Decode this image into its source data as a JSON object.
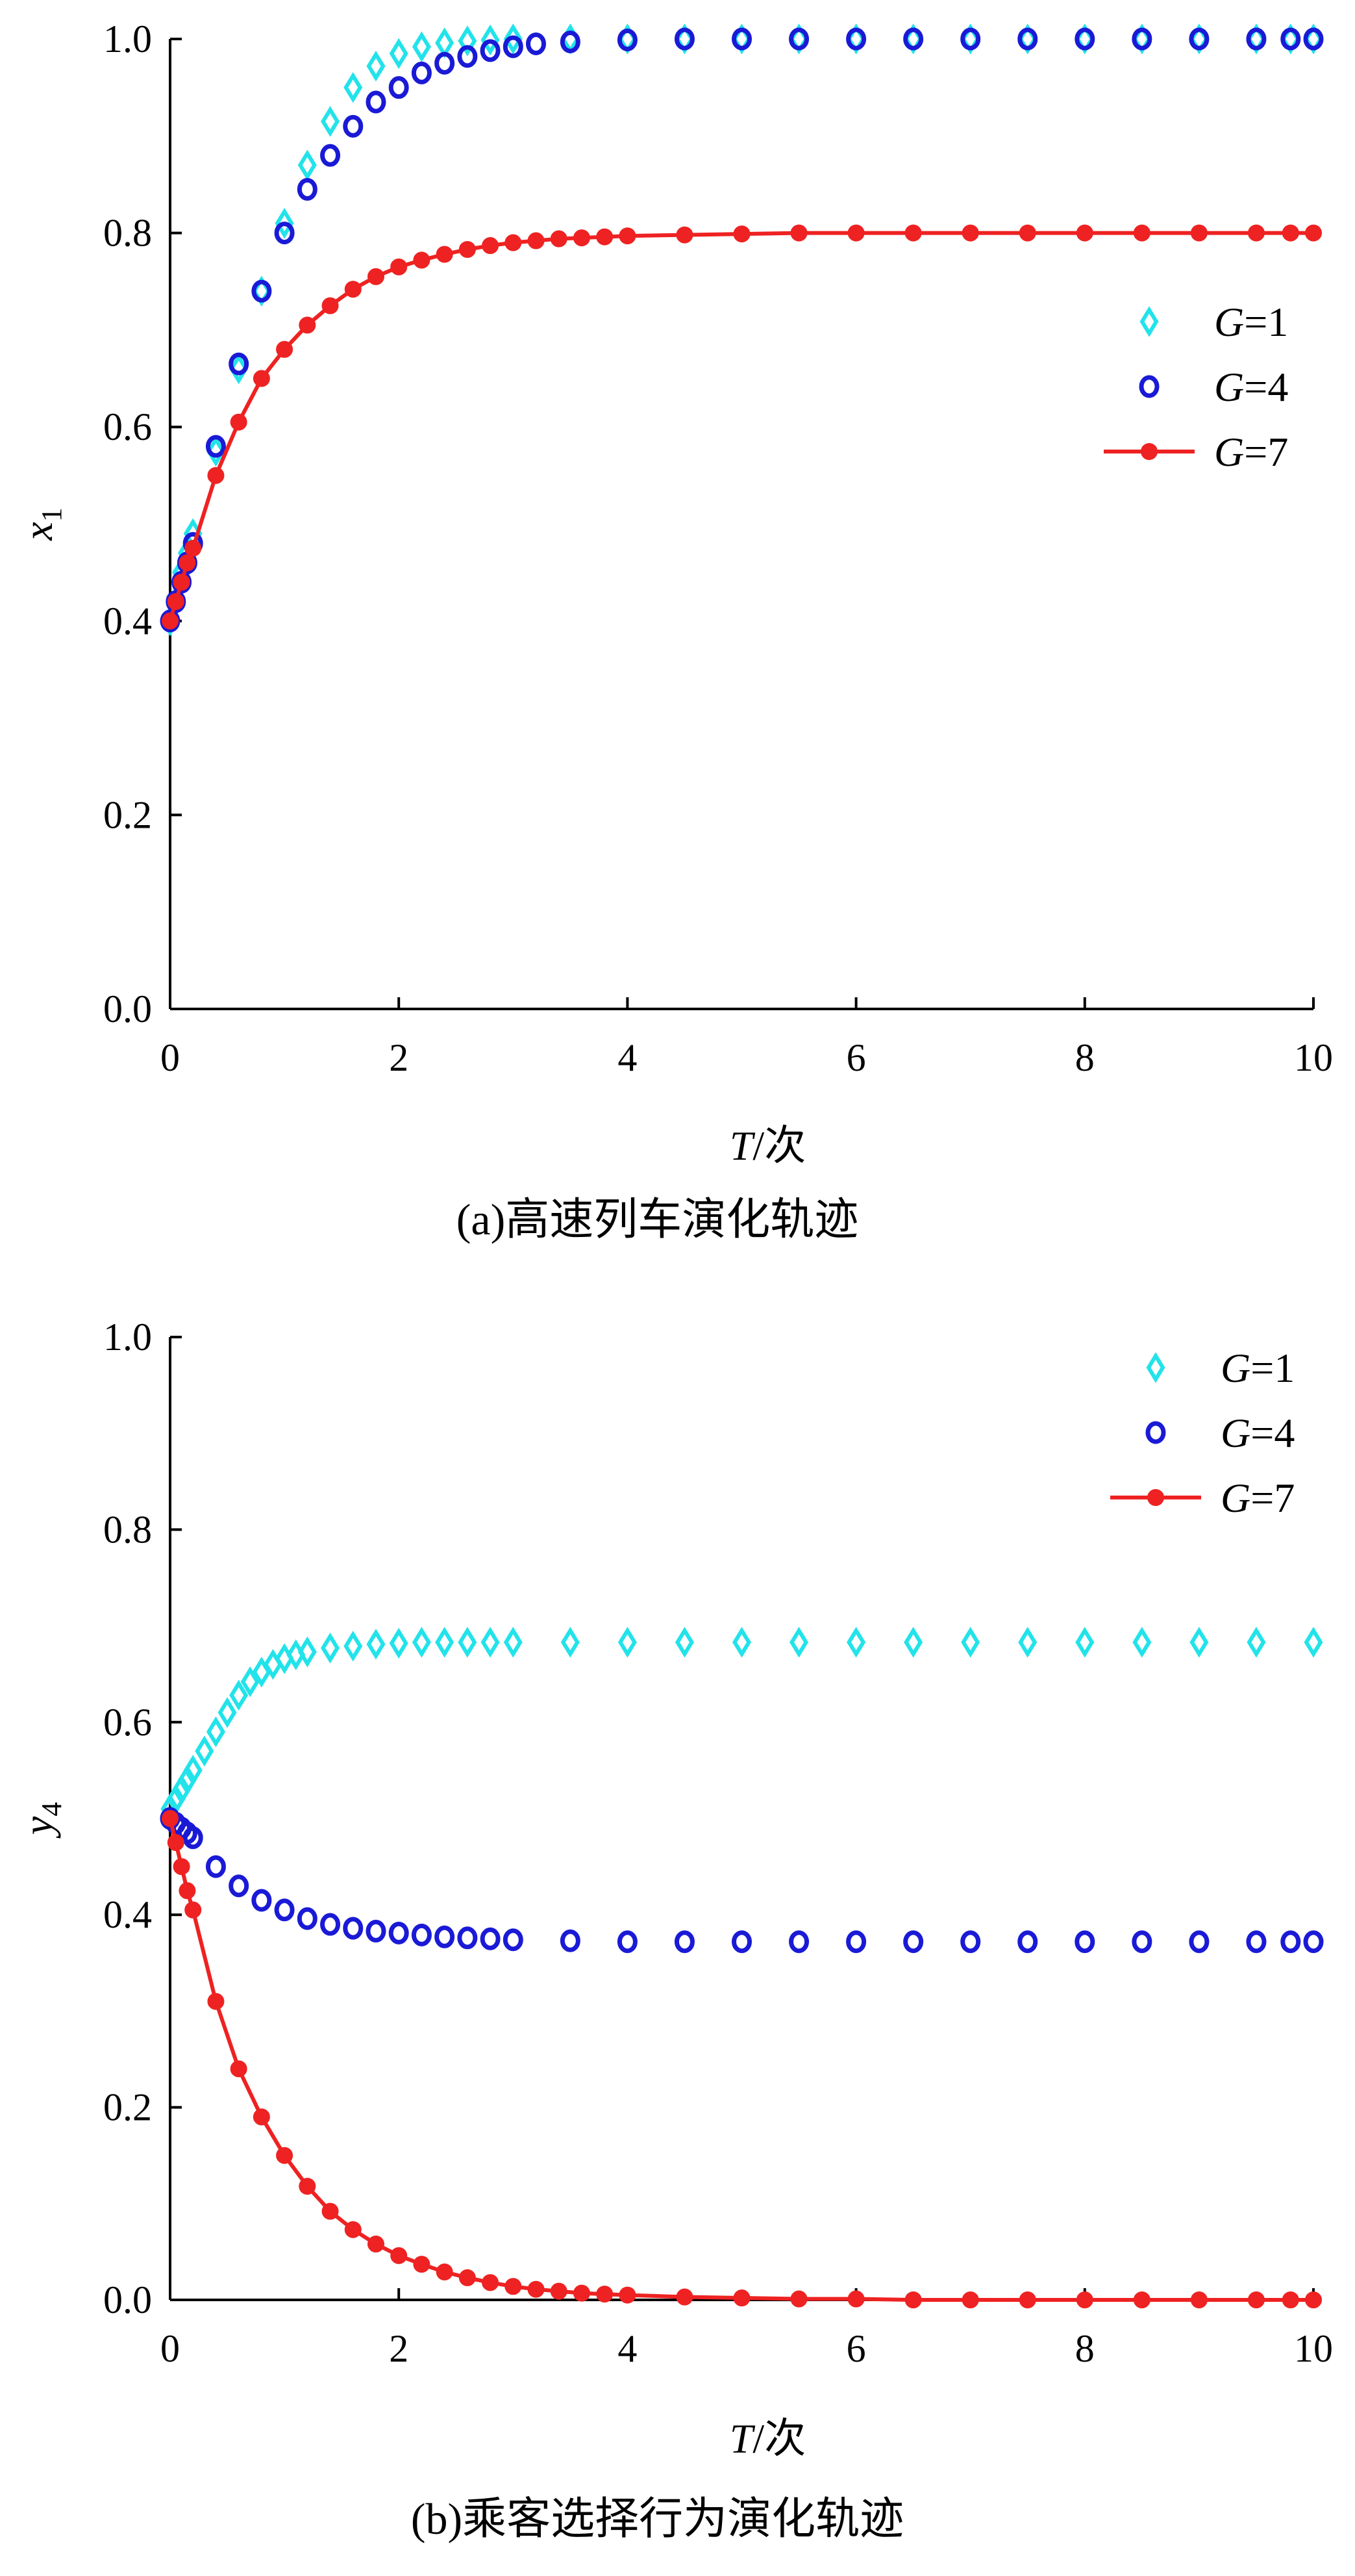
{
  "chart_data": [
    {
      "type": "scatter",
      "caption": "(a)高速列车演化轨迹",
      "xlabel_var": "T",
      "xlabel_unit": "/次",
      "ylabel_var": "x",
      "ylabel_sub": "1",
      "xlim": [
        0,
        10
      ],
      "ylim": [
        0,
        1
      ],
      "xticks": [
        "0",
        "2",
        "4",
        "6",
        "8",
        "10"
      ],
      "yticks": [
        "0.0",
        "0.2",
        "0.4",
        "0.6",
        "0.8",
        "1.0"
      ],
      "legend_position": "right",
      "series": [
        {
          "name_var": "G",
          "name_val": "=1",
          "color": "#22e3ea",
          "marker": "diamond",
          "x": [
            0.0,
            0.05,
            0.1,
            0.15,
            0.2,
            0.4,
            0.6,
            0.8,
            1.0,
            1.2,
            1.4,
            1.6,
            1.8,
            2.0,
            2.2,
            2.4,
            2.6,
            2.8,
            3.0,
            3.5,
            4.0,
            4.5,
            5.0,
            5.5,
            6.0,
            6.5,
            7.0,
            7.5,
            8.0,
            8.5,
            9.0,
            9.5,
            9.8,
            10.0
          ],
          "y": [
            0.4,
            0.42,
            0.45,
            0.47,
            0.49,
            0.575,
            0.66,
            0.74,
            0.81,
            0.87,
            0.915,
            0.95,
            0.972,
            0.985,
            0.992,
            0.996,
            0.998,
            0.999,
            1.0,
            1.0,
            1.0,
            1.0,
            1.0,
            1.0,
            1.0,
            1.0,
            1.0,
            1.0,
            1.0,
            1.0,
            1.0,
            1.0,
            1.0,
            1.0
          ]
        },
        {
          "name_var": "G",
          "name_val": "=4",
          "color": "#1a1ad6",
          "marker": "circle",
          "x": [
            0.0,
            0.05,
            0.1,
            0.15,
            0.2,
            0.4,
            0.6,
            0.8,
            1.0,
            1.2,
            1.4,
            1.6,
            1.8,
            2.0,
            2.2,
            2.4,
            2.6,
            2.8,
            3.0,
            3.2,
            3.5,
            4.0,
            4.5,
            5.0,
            5.5,
            6.0,
            6.5,
            7.0,
            7.5,
            8.0,
            8.5,
            9.0,
            9.5,
            9.8,
            10.0
          ],
          "y": [
            0.4,
            0.42,
            0.44,
            0.46,
            0.48,
            0.58,
            0.665,
            0.74,
            0.8,
            0.845,
            0.88,
            0.91,
            0.935,
            0.95,
            0.965,
            0.975,
            0.982,
            0.988,
            0.992,
            0.995,
            0.997,
            0.999,
            1.0,
            1.0,
            1.0,
            1.0,
            1.0,
            1.0,
            1.0,
            1.0,
            1.0,
            1.0,
            1.0,
            1.0,
            1.0
          ]
        },
        {
          "name_var": "G",
          "name_val": "=7",
          "color": "#ee2222",
          "marker": "line-dot",
          "x": [
            0.0,
            0.05,
            0.1,
            0.15,
            0.2,
            0.4,
            0.6,
            0.8,
            1.0,
            1.2,
            1.4,
            1.6,
            1.8,
            2.0,
            2.2,
            2.4,
            2.6,
            2.8,
            3.0,
            3.2,
            3.4,
            3.6,
            3.8,
            4.0,
            4.5,
            5.0,
            5.5,
            6.0,
            6.5,
            7.0,
            7.5,
            8.0,
            8.5,
            9.0,
            9.5,
            9.8,
            10.0
          ],
          "y": [
            0.4,
            0.42,
            0.44,
            0.46,
            0.475,
            0.55,
            0.605,
            0.65,
            0.68,
            0.705,
            0.725,
            0.742,
            0.755,
            0.765,
            0.772,
            0.778,
            0.783,
            0.787,
            0.79,
            0.792,
            0.794,
            0.795,
            0.796,
            0.797,
            0.798,
            0.799,
            0.8,
            0.8,
            0.8,
            0.8,
            0.8,
            0.8,
            0.8,
            0.8,
            0.8,
            0.8,
            0.8
          ]
        }
      ]
    },
    {
      "type": "scatter",
      "caption": "(b)乘客选择行为演化轨迹",
      "xlabel_var": "T",
      "xlabel_unit": "/次",
      "ylabel_var": "y",
      "ylabel_sub": "4",
      "xlim": [
        0,
        10
      ],
      "ylim": [
        0,
        1
      ],
      "xticks": [
        "0",
        "2",
        "4",
        "6",
        "8",
        "10"
      ],
      "yticks": [
        "0.0",
        "0.2",
        "0.4",
        "0.6",
        "0.8",
        "1.0"
      ],
      "legend_position": "top-right",
      "series": [
        {
          "name_var": "G",
          "name_val": "=1",
          "color": "#22e3ea",
          "marker": "diamond",
          "x": [
            0.0,
            0.05,
            0.1,
            0.15,
            0.2,
            0.3,
            0.4,
            0.5,
            0.6,
            0.7,
            0.8,
            0.9,
            1.0,
            1.1,
            1.2,
            1.4,
            1.6,
            1.8,
            2.0,
            2.2,
            2.4,
            2.6,
            2.8,
            3.0,
            3.5,
            4.0,
            4.5,
            5.0,
            5.5,
            6.0,
            6.5,
            7.0,
            7.5,
            8.0,
            8.5,
            9.0,
            9.5,
            10.0
          ],
          "y": [
            0.51,
            0.52,
            0.53,
            0.54,
            0.55,
            0.57,
            0.59,
            0.61,
            0.628,
            0.642,
            0.652,
            0.66,
            0.666,
            0.67,
            0.673,
            0.677,
            0.679,
            0.681,
            0.682,
            0.683,
            0.683,
            0.683,
            0.683,
            0.683,
            0.683,
            0.683,
            0.683,
            0.683,
            0.683,
            0.683,
            0.683,
            0.683,
            0.683,
            0.683,
            0.683,
            0.683,
            0.683,
            0.683
          ]
        },
        {
          "name_var": "G",
          "name_val": "=4",
          "color": "#1a1ad6",
          "marker": "circle",
          "x": [
            0.0,
            0.05,
            0.1,
            0.15,
            0.2,
            0.4,
            0.6,
            0.8,
            1.0,
            1.2,
            1.4,
            1.6,
            1.8,
            2.0,
            2.2,
            2.4,
            2.6,
            2.8,
            3.0,
            3.5,
            4.0,
            4.5,
            5.0,
            5.5,
            6.0,
            6.5,
            7.0,
            7.5,
            8.0,
            8.5,
            9.0,
            9.5,
            9.8,
            10.0
          ],
          "y": [
            0.5,
            0.495,
            0.49,
            0.485,
            0.48,
            0.45,
            0.43,
            0.415,
            0.405,
            0.396,
            0.39,
            0.386,
            0.383,
            0.381,
            0.379,
            0.377,
            0.376,
            0.375,
            0.374,
            0.373,
            0.372,
            0.372,
            0.372,
            0.372,
            0.372,
            0.372,
            0.372,
            0.372,
            0.372,
            0.372,
            0.372,
            0.372,
            0.372,
            0.372
          ]
        },
        {
          "name_var": "G",
          "name_val": "=7",
          "color": "#ee2222",
          "marker": "line-dot",
          "x": [
            0.0,
            0.05,
            0.1,
            0.15,
            0.2,
            0.4,
            0.6,
            0.8,
            1.0,
            1.2,
            1.4,
            1.6,
            1.8,
            2.0,
            2.2,
            2.4,
            2.6,
            2.8,
            3.0,
            3.2,
            3.4,
            3.6,
            3.8,
            4.0,
            4.5,
            5.0,
            5.5,
            6.0,
            6.5,
            7.0,
            7.5,
            8.0,
            8.5,
            9.0,
            9.5,
            9.8,
            10.0
          ],
          "y": [
            0.5,
            0.475,
            0.45,
            0.425,
            0.405,
            0.31,
            0.24,
            0.19,
            0.15,
            0.118,
            0.092,
            0.073,
            0.058,
            0.046,
            0.037,
            0.029,
            0.023,
            0.018,
            0.014,
            0.011,
            0.009,
            0.007,
            0.006,
            0.005,
            0.003,
            0.002,
            0.001,
            0.001,
            0.0,
            0.0,
            0.0,
            0.0,
            0.0,
            0.0,
            0.0,
            0.0,
            0.0
          ]
        }
      ]
    }
  ]
}
